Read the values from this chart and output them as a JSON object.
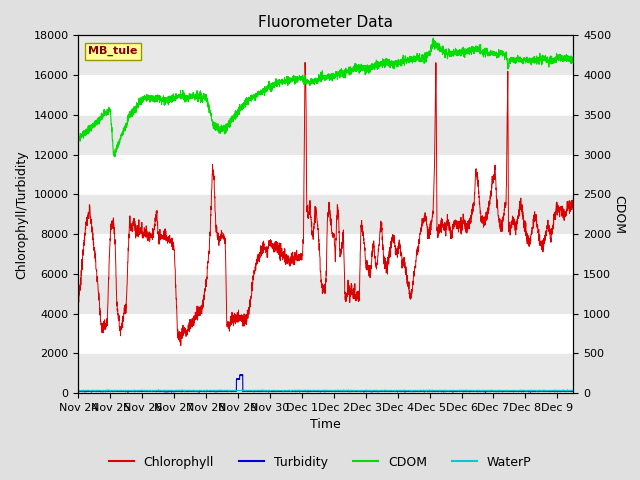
{
  "title": "Fluorometer Data",
  "xlabel": "Time",
  "ylabel_left": "Chlorophyll/Turbidity",
  "ylabel_right": "CDOM",
  "ylim_left": [
    0,
    18000
  ],
  "ylim_right": [
    0,
    4500
  ],
  "yticks_left": [
    0,
    2000,
    4000,
    6000,
    8000,
    10000,
    12000,
    14000,
    16000,
    18000
  ],
  "yticks_right": [
    0,
    500,
    1000,
    1500,
    2000,
    2500,
    3000,
    3500,
    4000,
    4500
  ],
  "xtick_labels": [
    "Nov 24",
    "Nov 25",
    "Nov 26",
    "Nov 27",
    "Nov 28",
    "Nov 29",
    "Nov 30",
    "Dec 1",
    "Dec 2",
    "Dec 3",
    "Dec 4",
    "Dec 5",
    "Dec 6",
    "Dec 7",
    "Dec 8",
    "Dec 9"
  ],
  "legend_labels": [
    "Chlorophyll",
    "Turbidity",
    "CDOM",
    "WaterP"
  ],
  "legend_colors": [
    "#dd0000",
    "#0000dd",
    "#00dd00",
    "#00cccc"
  ],
  "station_label": "MB_tule",
  "station_box_facecolor": "#ffff99",
  "station_box_edgecolor": "#999900",
  "fig_facecolor": "#e0e0e0",
  "plot_facecolor": "#ffffff",
  "band_color_odd": "#e8e8e8",
  "band_color_even": "#ffffff",
  "title_fontsize": 11,
  "axis_label_fontsize": 9,
  "tick_fontsize": 8,
  "legend_fontsize": 9
}
